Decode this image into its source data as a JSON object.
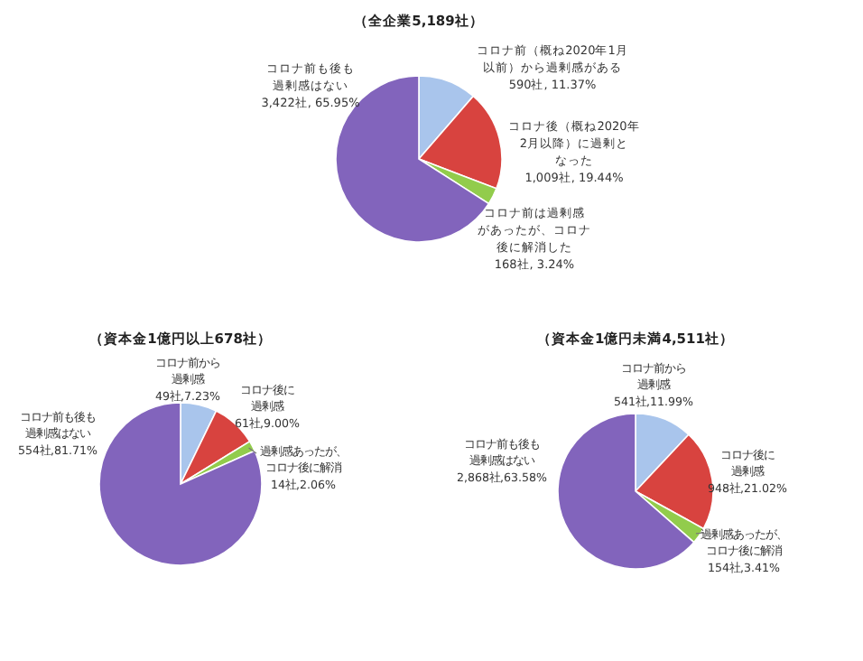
{
  "chart_data": [
    {
      "type": "pie",
      "title": "（全企業5,189社）",
      "categories": [
        "コロナ前（概ね2020年1月以前）から過剰感がある",
        "コロナ後（概ね2020年2月以降）に過剰となった",
        "コロナ前は過剰感があったが、コロナ後に解消した",
        "コロナ前も後も過剰感はない"
      ],
      "values": [
        590,
        1009,
        168,
        3422
      ],
      "value_labels": [
        "590社, 11.37%",
        "1,009社, 19.44%",
        "168社, 3.24%",
        "3,422社, 65.95%"
      ],
      "colors": [
        "#a9c5ec",
        "#d8433f",
        "#92cc4c",
        "#8264bc"
      ]
    },
    {
      "type": "pie",
      "title": "（資本金1億円以上678社）",
      "categories": [
        "コロナ前から過剰感",
        "コロナ後に過剰感",
        "過剰感あったが、コロナ後に解消",
        "コロナ前も後も過剰感はない"
      ],
      "values": [
        49,
        61,
        14,
        554
      ],
      "value_labels": [
        "49社,7.23%",
        "61社,9.00%",
        "14社,2.06%",
        "554社,81.71%"
      ],
      "colors": [
        "#a9c5ec",
        "#d8433f",
        "#92cc4c",
        "#8264bc"
      ]
    },
    {
      "type": "pie",
      "title": "（資本金1億円未満4,511社）",
      "categories": [
        "コロナ前から過剰感",
        "コロナ後に過剰感",
        "過剰感あったが、コロナ後に解消",
        "コロナ前も後も過剰感はない"
      ],
      "values": [
        541,
        948,
        154,
        2868
      ],
      "value_labels": [
        "541社,11.99%",
        "948社,21.02%",
        "154社,3.41%",
        "2,868社,63.58%"
      ],
      "colors": [
        "#a9c5ec",
        "#d8433f",
        "#92cc4c",
        "#8264bc"
      ]
    }
  ]
}
